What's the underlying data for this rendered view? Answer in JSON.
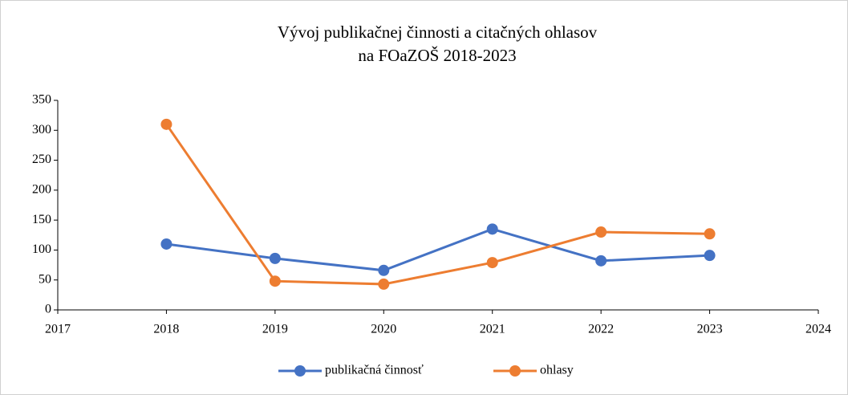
{
  "chart_data": {
    "type": "line",
    "title": [
      "Vývoj publikačnej činnosti a citačných ohlasov",
      "na FOaZOŠ 2018-2023"
    ],
    "x": [
      2018,
      2019,
      2020,
      2021,
      2022,
      2023
    ],
    "series": [
      {
        "name": "publikačná činnosť",
        "color": "#4472c4",
        "values": [
          110,
          86,
          66,
          135,
          82,
          91
        ]
      },
      {
        "name": "ohlasy",
        "color": "#ed7d31",
        "values": [
          310,
          48,
          43,
          79,
          130,
          127
        ]
      }
    ],
    "xlim": [
      2017,
      2024
    ],
    "xticks": [
      2017,
      2018,
      2019,
      2020,
      2021,
      2022,
      2023,
      2024
    ],
    "ylim": [
      0,
      350
    ],
    "yticks": [
      0,
      50,
      100,
      150,
      200,
      250,
      300,
      350
    ],
    "grid": false,
    "legend": "bottom"
  }
}
